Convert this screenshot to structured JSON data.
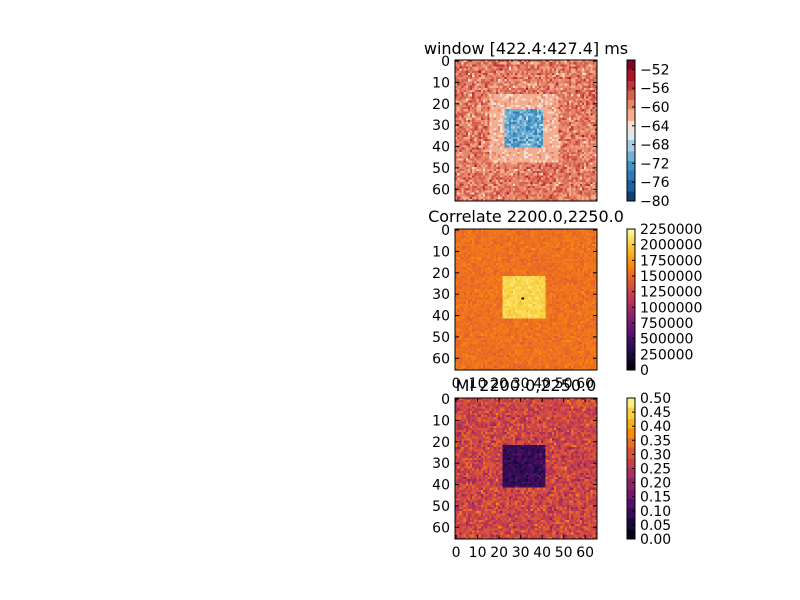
{
  "chart_data": [
    {
      "type": "heatmap",
      "title": "window [422.4:427.4] ms",
      "rows": 66,
      "cols": 66,
      "x_ticks": [],
      "y_ticks": [
        0,
        10,
        20,
        30,
        40,
        50,
        60
      ],
      "colormap": "RdBu_r",
      "vmin": -80,
      "vmax": -50,
      "colorbar_ticks": [
        "−52",
        "−56",
        "−60",
        "−64",
        "−68",
        "−72",
        "−76",
        "−80"
      ],
      "colorbar_values": [
        -52,
        -56,
        -60,
        -64,
        -68,
        -72,
        -76,
        -80
      ],
      "colorbar_discrete": true,
      "pattern": {
        "background_mean": -59,
        "background_noise": 4,
        "inner_square": {
          "rows": [
            23,
            40
          ],
          "cols": [
            23,
            40
          ],
          "mean": -71,
          "noise": 4
        },
        "ring": {
          "rows": [
            16,
            47
          ],
          "cols": [
            16,
            47
          ],
          "mean": -62,
          "noise": 2
        }
      }
    },
    {
      "type": "heatmap",
      "title": "Correlate 2200.0,2250.0",
      "rows": 66,
      "cols": 66,
      "x_ticks": [
        0,
        10,
        20,
        30,
        40,
        50,
        60
      ],
      "y_ticks": [
        0,
        10,
        20,
        30,
        40,
        50,
        60
      ],
      "colormap": "inferno",
      "vmin": 0,
      "vmax": 2250000,
      "colorbar_ticks": [
        "2250000",
        "2000000",
        "1750000",
        "1500000",
        "1250000",
        "1000000",
        "750000",
        "500000",
        "250000",
        "0"
      ],
      "colorbar_values": [
        2250000,
        2000000,
        1750000,
        1500000,
        1250000,
        1000000,
        750000,
        500000,
        250000,
        0
      ],
      "colorbar_discrete": false,
      "pattern": {
        "background_mean": 1550000,
        "background_noise": 120000,
        "inner_square": {
          "rows": [
            22,
            41
          ],
          "cols": [
            22,
            41
          ],
          "mean": 2050000,
          "noise": 100000
        },
        "dot": {
          "row": 32,
          "col": 31,
          "value": 0
        }
      }
    },
    {
      "type": "heatmap",
      "title": "MI 2200.0,2250.0",
      "rows": 66,
      "cols": 66,
      "x_ticks": [
        0,
        10,
        20,
        30,
        40,
        50,
        60
      ],
      "y_ticks": [
        0,
        10,
        20,
        30,
        40,
        50,
        60
      ],
      "colormap": "inferno",
      "vmin": 0,
      "vmax": 0.5,
      "colorbar_ticks": [
        "0.50",
        "0.45",
        "0.40",
        "0.35",
        "0.30",
        "0.25",
        "0.20",
        "0.15",
        "0.10",
        "0.05",
        "0.00"
      ],
      "colorbar_values": [
        0.5,
        0.45,
        0.4,
        0.35,
        0.3,
        0.25,
        0.2,
        0.15,
        0.1,
        0.05,
        0.0
      ],
      "colorbar_discrete": true,
      "pattern": {
        "background_mean": 0.28,
        "background_noise": 0.07,
        "inner_square": {
          "rows": [
            22,
            41
          ],
          "cols": [
            22,
            41
          ],
          "mean": 0.09,
          "noise": 0.04
        }
      }
    }
  ]
}
